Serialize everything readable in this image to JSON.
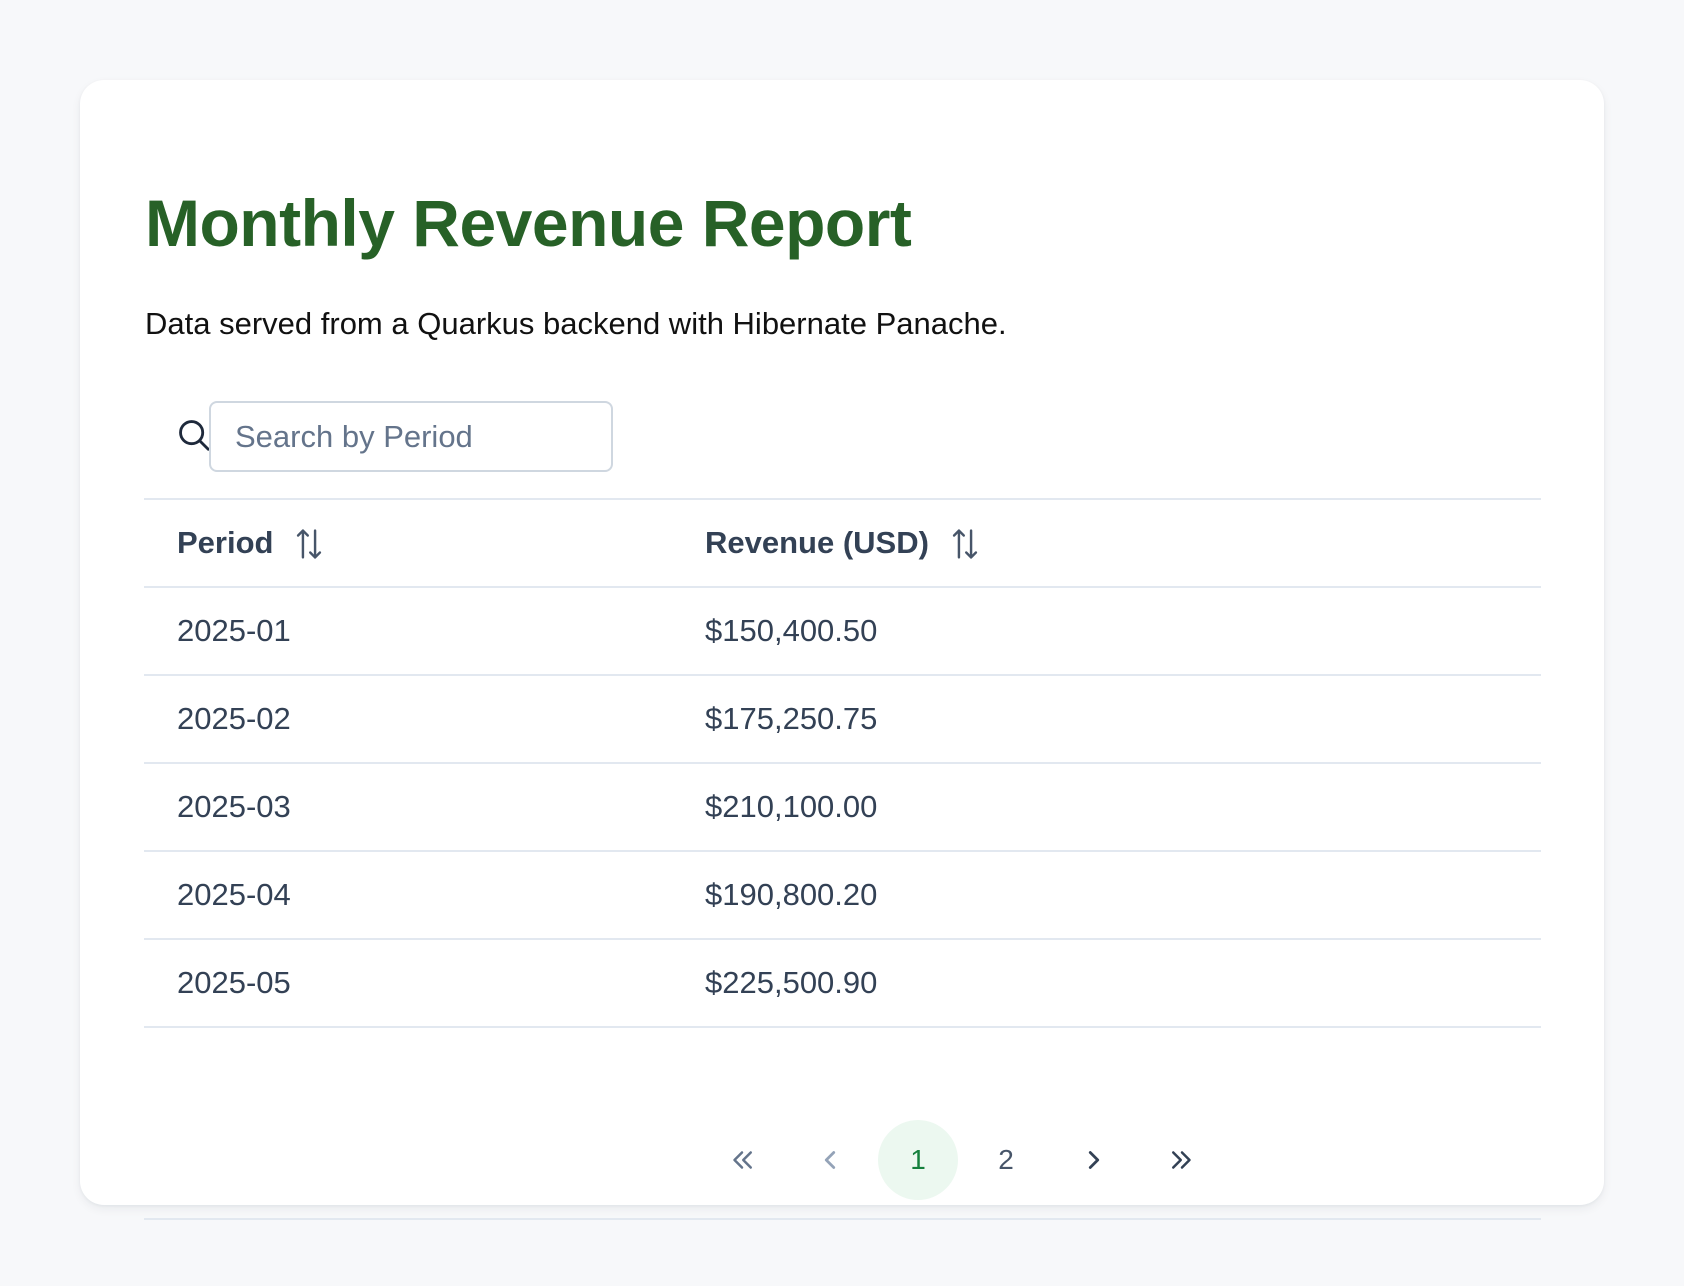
{
  "header": {
    "title": "Monthly Revenue Report",
    "subtitle": "Data served from a Quarkus backend with Hibernate Panache."
  },
  "search": {
    "placeholder": "Search by Period",
    "value": ""
  },
  "table": {
    "columns": [
      {
        "label": "Period",
        "sortable": true
      },
      {
        "label": "Revenue (USD)",
        "sortable": true
      }
    ],
    "rows": [
      {
        "period": "2025-01",
        "revenue": "$150,400.50"
      },
      {
        "period": "2025-02",
        "revenue": "$175,250.75"
      },
      {
        "period": "2025-03",
        "revenue": "$210,100.00"
      },
      {
        "period": "2025-04",
        "revenue": "$190,800.20"
      },
      {
        "period": "2025-05",
        "revenue": "$225,500.90"
      }
    ]
  },
  "pagination": {
    "pages": [
      "1",
      "2"
    ],
    "current_page": "1",
    "icons": {
      "first": "chevrons-left-icon",
      "prev": "chevron-left-icon",
      "next": "chevron-right-icon",
      "last": "chevrons-right-icon"
    }
  },
  "colors": {
    "title": "#276127",
    "active_page_bg": "#ecf8f0",
    "active_page_text": "#15803d",
    "text": "#334155",
    "border": "#e2e8f0",
    "background": "#f7f8fa"
  }
}
